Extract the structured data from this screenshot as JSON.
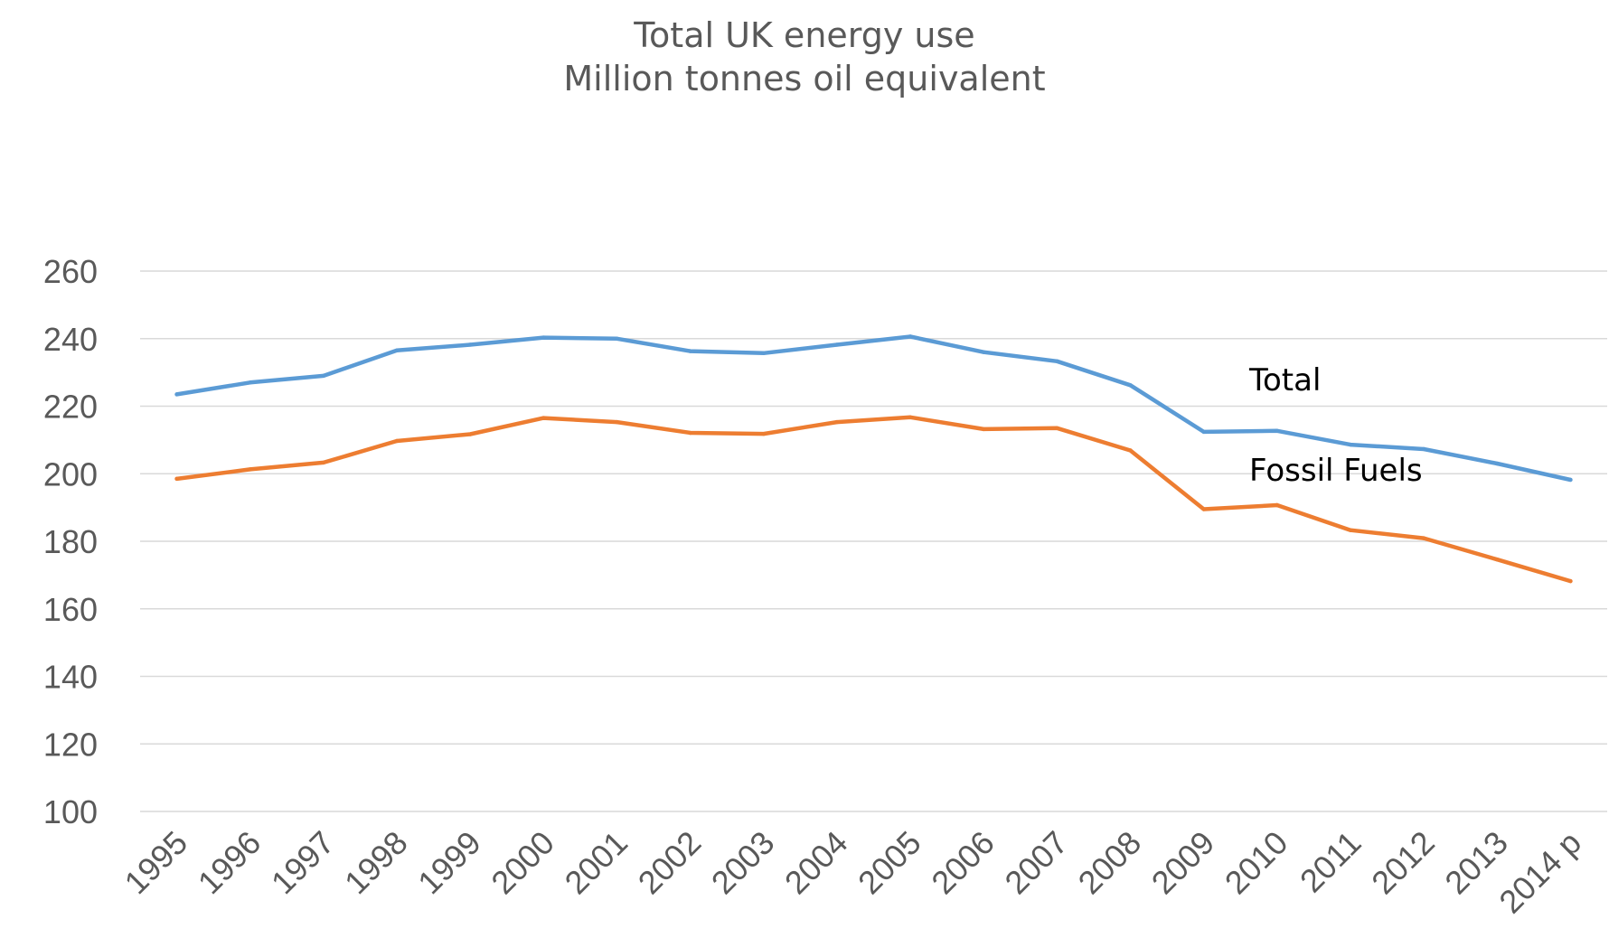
{
  "chart_data": {
    "type": "line",
    "title": "Total UK energy use",
    "subtitle": "Million tonnes oil equivalent",
    "xlabel": "",
    "ylabel": "",
    "categories": [
      "1995",
      "1996",
      "1997",
      "1998",
      "1999",
      "2000",
      "2001",
      "2002",
      "2003",
      "2004",
      "2005",
      "2006",
      "2007",
      "2008",
      "2009",
      "2010",
      "2011",
      "2012",
      "2013",
      "2014 p"
    ],
    "ylim": [
      100,
      260
    ],
    "yticks": [
      100,
      120,
      140,
      160,
      180,
      200,
      220,
      240,
      260
    ],
    "grid": true,
    "legend": "none",
    "series": [
      {
        "name": "Total",
        "color": "#5b9bd5",
        "values": [
          223.5,
          227.0,
          229.0,
          236.5,
          238.2,
          240.3,
          240.0,
          236.3,
          235.7,
          238.2,
          240.6,
          236.0,
          233.3,
          226.2,
          212.4,
          212.7,
          208.6,
          207.3,
          203.0,
          198.2
        ]
      },
      {
        "name": "Fossil Fuels",
        "color": "#ed7d31",
        "values": [
          198.5,
          201.3,
          203.3,
          209.7,
          211.7,
          216.5,
          215.3,
          212.1,
          211.8,
          215.3,
          216.7,
          213.2,
          213.5,
          206.9,
          189.5,
          190.7,
          183.3,
          180.9,
          174.6,
          168.2
        ]
      }
    ]
  }
}
